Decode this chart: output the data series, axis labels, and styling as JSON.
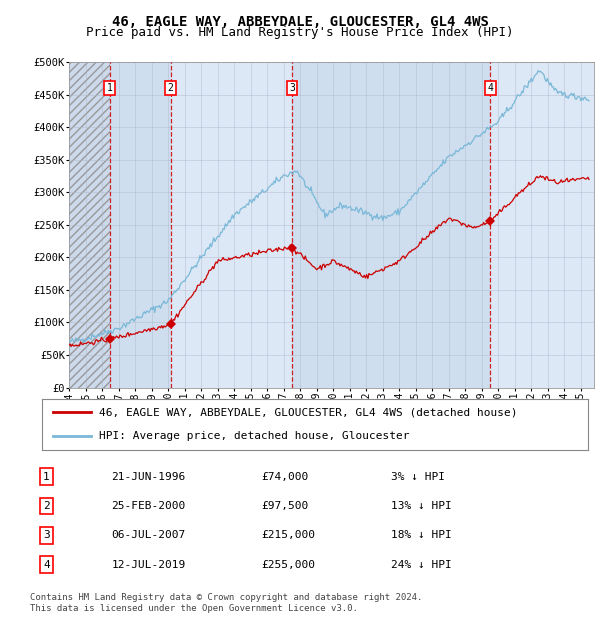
{
  "title": "46, EAGLE WAY, ABBEYDALE, GLOUCESTER, GL4 4WS",
  "subtitle": "Price paid vs. HM Land Registry's House Price Index (HPI)",
  "ylim": [
    0,
    500000
  ],
  "yticks": [
    0,
    50000,
    100000,
    150000,
    200000,
    250000,
    300000,
    350000,
    400000,
    450000,
    500000
  ],
  "ytick_labels": [
    "£0",
    "£50K",
    "£100K",
    "£150K",
    "£200K",
    "£250K",
    "£300K",
    "£350K",
    "£400K",
    "£450K",
    "£500K"
  ],
  "xlim_start": 1994.0,
  "xlim_end": 2025.8,
  "xticks": [
    1994,
    1995,
    1996,
    1997,
    1998,
    1999,
    2000,
    2001,
    2002,
    2003,
    2004,
    2005,
    2006,
    2007,
    2008,
    2009,
    2010,
    2011,
    2012,
    2013,
    2014,
    2015,
    2016,
    2017,
    2018,
    2019,
    2020,
    2021,
    2022,
    2023,
    2024,
    2025
  ],
  "hpi_color": "#7ab8d8",
  "price_color": "#cc0000",
  "marker_color": "#cc0000",
  "dashed_color": "#cc0000",
  "plot_bg_color": "#dce8f5",
  "transaction_dates": [
    1996.47,
    2000.15,
    2007.51,
    2019.53
  ],
  "transaction_prices": [
    74000,
    97500,
    215000,
    255000
  ],
  "transaction_labels": [
    "1",
    "2",
    "3",
    "4"
  ],
  "legend_line1": "46, EAGLE WAY, ABBEYDALE, GLOUCESTER, GL4 4WS (detached house)",
  "legend_line2": "HPI: Average price, detached house, Gloucester",
  "table_data": [
    [
      "1",
      "21-JUN-1996",
      "£74,000",
      "3% ↓ HPI"
    ],
    [
      "2",
      "25-FEB-2000",
      "£97,500",
      "13% ↓ HPI"
    ],
    [
      "3",
      "06-JUL-2007",
      "£215,000",
      "18% ↓ HPI"
    ],
    [
      "4",
      "12-JUL-2019",
      "£255,000",
      "24% ↓ HPI"
    ]
  ],
  "footnote": "Contains HM Land Registry data © Crown copyright and database right 2024.\nThis data is licensed under the Open Government Licence v3.0.",
  "title_fontsize": 10,
  "subtitle_fontsize": 9,
  "tick_fontsize": 7.5,
  "legend_fontsize": 8,
  "table_fontsize": 8,
  "footnote_fontsize": 6.5
}
